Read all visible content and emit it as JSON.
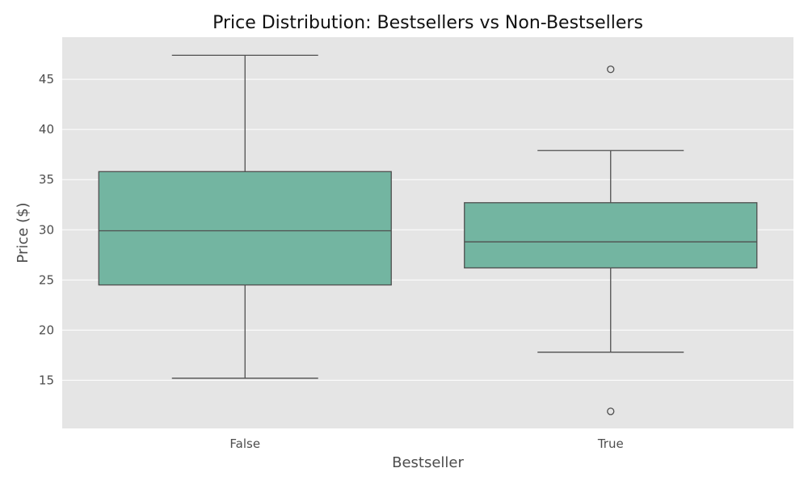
{
  "chart_data": {
    "type": "box",
    "title": "Price Distribution: Bestsellers vs Non-Bestsellers",
    "xlabel": "Bestseller",
    "ylabel": "Price ($)",
    "categories": [
      "False",
      "True"
    ],
    "ylim": [
      10.2,
      49.2
    ],
    "yticks": [
      15,
      20,
      25,
      30,
      35,
      40,
      45
    ],
    "grid": true,
    "colors": {
      "box_fill": "#73b5a1",
      "line": "#4f4f4f",
      "background": "#e5e5e5",
      "grid": "#ffffff"
    },
    "boxes": [
      {
        "category": "False",
        "whisker_low": 15.2,
        "q1": 24.5,
        "median": 29.9,
        "q3": 35.8,
        "whisker_high": 47.4,
        "outliers": []
      },
      {
        "category": "True",
        "whisker_low": 17.8,
        "q1": 26.2,
        "median": 28.8,
        "q3": 32.7,
        "whisker_high": 37.9,
        "outliers": [
          46.0,
          11.9
        ]
      }
    ]
  }
}
